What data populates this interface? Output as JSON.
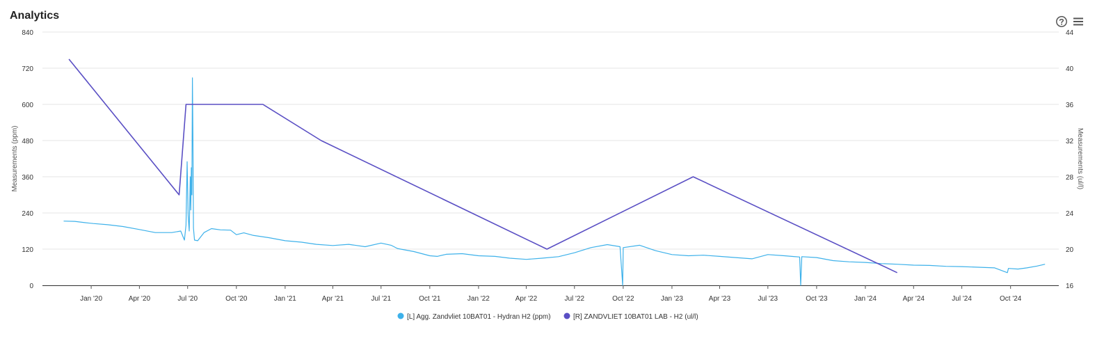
{
  "panel": {
    "title": "Analytics",
    "icons": [
      "help-icon",
      "menu-icon"
    ]
  },
  "colors": {
    "series_left": "#3db1ea",
    "series_right": "#5a4fc4",
    "grid": "#e6e6e6",
    "axis_text": "#333333",
    "title_text": "#222222"
  },
  "chart_data": {
    "type": "line",
    "title": "",
    "grid": true,
    "legend_position": "bottom-center",
    "x_axis": {
      "type": "date",
      "range": [
        "2019-10-01",
        "2024-12-31"
      ],
      "ticks": [
        {
          "label": "Jan '20",
          "date": "2020-01-01"
        },
        {
          "label": "Apr '20",
          "date": "2020-04-01"
        },
        {
          "label": "Jul '20",
          "date": "2020-07-01"
        },
        {
          "label": "Oct '20",
          "date": "2020-10-01"
        },
        {
          "label": "Jan '21",
          "date": "2021-01-01"
        },
        {
          "label": "Apr '21",
          "date": "2021-04-01"
        },
        {
          "label": "Jul '21",
          "date": "2021-07-01"
        },
        {
          "label": "Oct '21",
          "date": "2021-10-01"
        },
        {
          "label": "Jan '22",
          "date": "2022-01-01"
        },
        {
          "label": "Apr '22",
          "date": "2022-04-01"
        },
        {
          "label": "Jul '22",
          "date": "2022-07-01"
        },
        {
          "label": "Oct '22",
          "date": "2022-10-01"
        },
        {
          "label": "Jan '23",
          "date": "2023-01-01"
        },
        {
          "label": "Apr '23",
          "date": "2023-04-01"
        },
        {
          "label": "Jul '23",
          "date": "2023-07-01"
        },
        {
          "label": "Oct '23",
          "date": "2023-10-01"
        },
        {
          "label": "Jan '24",
          "date": "2024-01-01"
        },
        {
          "label": "Apr '24",
          "date": "2024-04-01"
        },
        {
          "label": "Jul '24",
          "date": "2024-07-01"
        },
        {
          "label": "Oct '24",
          "date": "2024-10-01"
        }
      ]
    },
    "y_left": {
      "label": "Measurements (ppm)",
      "range": [
        0,
        840
      ],
      "ticks": [
        "0",
        "120",
        "240",
        "360",
        "480",
        "600",
        "720",
        "840"
      ]
    },
    "y_right": {
      "label": "Measurements (ul/l)",
      "range": [
        16,
        44
      ],
      "ticks": [
        "16",
        "20",
        "24",
        "28",
        "32",
        "36",
        "40",
        "44"
      ]
    },
    "series": [
      {
        "name": "[L] Agg. Zandvliet 10BAT01 - Hydran H2 (ppm)",
        "axis": "left",
        "points": [
          [
            "2019-11-10",
            213
          ],
          [
            "2019-12-01",
            212
          ],
          [
            "2019-12-20",
            208
          ],
          [
            "2020-01-05",
            205
          ],
          [
            "2020-02-01",
            201
          ],
          [
            "2020-03-01",
            195
          ],
          [
            "2020-04-01",
            185
          ],
          [
            "2020-05-01",
            175
          ],
          [
            "2020-06-01",
            175
          ],
          [
            "2020-06-18",
            180
          ],
          [
            "2020-06-25",
            150
          ],
          [
            "2020-06-28",
            200
          ],
          [
            "2020-06-30",
            410
          ],
          [
            "2020-07-02",
            230
          ],
          [
            "2020-07-04",
            180
          ],
          [
            "2020-07-06",
            360
          ],
          [
            "2020-07-07",
            250
          ],
          [
            "2020-07-08",
            390
          ],
          [
            "2020-07-09",
            300
          ],
          [
            "2020-07-10",
            688
          ],
          [
            "2020-07-11",
            500
          ],
          [
            "2020-07-12",
            190
          ],
          [
            "2020-07-14",
            150
          ],
          [
            "2020-07-20",
            148
          ],
          [
            "2020-08-01",
            175
          ],
          [
            "2020-08-15",
            188
          ],
          [
            "2020-09-01",
            184
          ],
          [
            "2020-09-20",
            183
          ],
          [
            "2020-10-01",
            168
          ],
          [
            "2020-10-15",
            174
          ],
          [
            "2020-11-01",
            166
          ],
          [
            "2020-12-01",
            158
          ],
          [
            "2021-01-01",
            148
          ],
          [
            "2021-02-01",
            143
          ],
          [
            "2021-03-01",
            136
          ],
          [
            "2021-04-01",
            132
          ],
          [
            "2021-05-01",
            136
          ],
          [
            "2021-06-01",
            128
          ],
          [
            "2021-07-01",
            140
          ],
          [
            "2021-07-20",
            133
          ],
          [
            "2021-08-01",
            122
          ],
          [
            "2021-09-01",
            112
          ],
          [
            "2021-10-01",
            98
          ],
          [
            "2021-10-15",
            96
          ],
          [
            "2021-11-01",
            103
          ],
          [
            "2021-12-01",
            105
          ],
          [
            "2022-01-01",
            98
          ],
          [
            "2022-02-01",
            96
          ],
          [
            "2022-03-01",
            90
          ],
          [
            "2022-04-01",
            86
          ],
          [
            "2022-05-01",
            90
          ],
          [
            "2022-06-01",
            95
          ],
          [
            "2022-07-01",
            108
          ],
          [
            "2022-08-01",
            125
          ],
          [
            "2022-09-01",
            135
          ],
          [
            "2022-09-25",
            128
          ],
          [
            "2022-09-30",
            0
          ],
          [
            "2022-10-01",
            125
          ],
          [
            "2022-11-01",
            133
          ],
          [
            "2022-12-01",
            115
          ],
          [
            "2023-01-01",
            102
          ],
          [
            "2023-02-01",
            98
          ],
          [
            "2023-03-01",
            100
          ],
          [
            "2023-04-01",
            96
          ],
          [
            "2023-05-01",
            92
          ],
          [
            "2023-06-01",
            88
          ],
          [
            "2023-07-01",
            102
          ],
          [
            "2023-08-01",
            98
          ],
          [
            "2023-08-30",
            94
          ],
          [
            "2023-09-01",
            0
          ],
          [
            "2023-09-03",
            95
          ],
          [
            "2023-10-01",
            92
          ],
          [
            "2023-11-01",
            82
          ],
          [
            "2023-12-01",
            78
          ],
          [
            "2024-01-01",
            76
          ],
          [
            "2024-02-01",
            72
          ],
          [
            "2024-03-01",
            70
          ],
          [
            "2024-04-01",
            67
          ],
          [
            "2024-05-01",
            66
          ],
          [
            "2024-06-01",
            63
          ],
          [
            "2024-07-01",
            62
          ],
          [
            "2024-08-01",
            60
          ],
          [
            "2024-09-01",
            58
          ],
          [
            "2024-09-25",
            42
          ],
          [
            "2024-09-27",
            56
          ],
          [
            "2024-10-15",
            54
          ],
          [
            "2024-11-01",
            58
          ],
          [
            "2024-11-20",
            64
          ],
          [
            "2024-12-05",
            70
          ]
        ]
      },
      {
        "name": "[R] ZANDVLIET 10BAT01 LAB - H2 (ul/l)",
        "axis": "right",
        "points": [
          [
            "2019-11-20",
            41
          ],
          [
            "2020-06-15",
            26
          ],
          [
            "2020-06-28",
            36
          ],
          [
            "2020-11-20",
            36
          ],
          [
            "2021-03-10",
            32
          ],
          [
            "2022-05-10",
            20
          ],
          [
            "2023-02-10",
            28
          ],
          [
            "2024-03-01",
            17.4
          ]
        ]
      }
    ]
  }
}
